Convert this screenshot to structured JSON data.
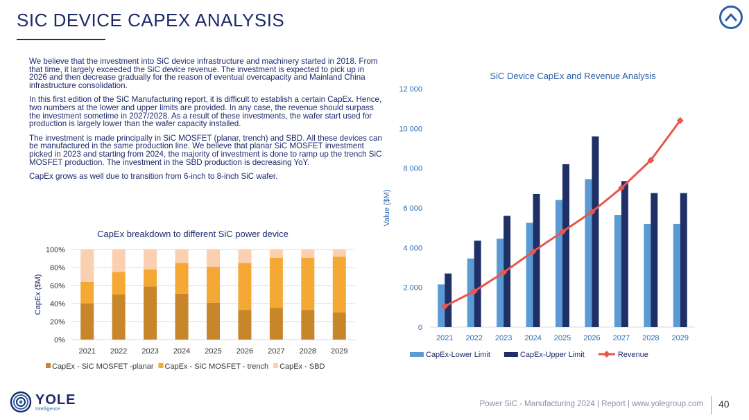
{
  "header": {
    "title": "SIC DEVICE CAPEX ANALYSIS"
  },
  "body": {
    "paragraphs": [
      "We believe that the investment into SiC device infrastructure and machinery started in 2018. From that time, it largely exceeded the SiC device revenue. The investment is expected to pick up in 2026 and then decrease gradually for the reason of eventual overcapacity and Mainland China infrastructure consolidation.",
      "In this first edition of the SiC Manufacturing report, it is difficult to establish a certain CapEx. Hence, two numbers at the lower and upper limits are provided. In any case, the revenue should surpass the investment sometime in 2027/2028. As a result of these investments, the wafer start used for production is largely lower than the wafer capacity installed.",
      "The investment is made principally in SiC MOSFET (planar, trench) and SBD. All these devices can be manufactured in the same production line.  We believe that planar SiC MOSFET investment picked in 2023 and starting from 2024, the majority of investment is done to ramp up the trench SiC MOSFET production. The investment in the SBD production is decreasing YoY.",
      "CapEx grows as well due to transition from 6-inch to 8-inch SiC wafer."
    ]
  },
  "footer": {
    "logo_name": "YOLE",
    "logo_sub": "Intelligence",
    "text": "Power SiC - Manufacturing 2024 | Report | www.yolegroup.com",
    "page_number": "40"
  },
  "icons": {
    "up_button": "chevron-up-icon",
    "logo": "yole-logo-icon"
  },
  "chart_data": [
    {
      "type": "bar",
      "stacked": true,
      "percent": true,
      "title": "CapEx breakdown to different SiC power  device",
      "xlabel": "",
      "ylabel": "CapEx ($M)",
      "ylim": [
        0,
        100
      ],
      "y_ticks": [
        "0%",
        "20%",
        "40%",
        "60%",
        "80%",
        "100%"
      ],
      "categories": [
        "2021",
        "2022",
        "2023",
        "2024",
        "2025",
        "2026",
        "2027",
        "2028",
        "2029"
      ],
      "series": [
        {
          "name": "CapEx - SiC MOSFET -planar",
          "color": "#c8862a",
          "values": [
            40,
            50,
            59,
            51,
            41,
            33,
            35,
            33,
            30
          ]
        },
        {
          "name": "CapEx - SiC MOSFET - trench",
          "color": "#f5a833",
          "values": [
            24,
            25,
            19,
            34,
            40,
            52,
            56,
            58,
            62
          ]
        },
        {
          "name": "CapEx - SBD",
          "color": "#fad0b0",
          "values": [
            36,
            25,
            22,
            15,
            19,
            15,
            9,
            9,
            8
          ]
        }
      ],
      "legend": "bottom",
      "grid": true
    },
    {
      "type": "bar",
      "title": "SiC Device CapEx and Revenue Analysis",
      "xlabel": "",
      "ylabel": "Value ($M)",
      "ylim": [
        0,
        12000
      ],
      "y_ticks": [
        "0",
        "2 000",
        "4 000",
        "6 000",
        "8 000",
        "10 000",
        "12 000"
      ],
      "categories": [
        "2021",
        "2022",
        "2023",
        "2024",
        "2025",
        "2026",
        "2027",
        "2028",
        "2029"
      ],
      "series": [
        {
          "name": "CapEx-Lower Limit",
          "type": "bar",
          "color": "#5b9bd5",
          "values": [
            2150,
            3450,
            4450,
            5250,
            6400,
            7450,
            5650,
            5200,
            5200
          ]
        },
        {
          "name": "CapEx-Upper Limit",
          "type": "bar",
          "color": "#1f3066",
          "values": [
            2700,
            4350,
            5600,
            6700,
            8200,
            9600,
            7350,
            6750,
            6750
          ]
        },
        {
          "name": "Revenue",
          "type": "line",
          "color": "#e8564d",
          "values": [
            1050,
            1800,
            2750,
            3800,
            4800,
            5800,
            7000,
            8400,
            10400
          ]
        }
      ],
      "legend": "bottom",
      "grid": false
    }
  ]
}
